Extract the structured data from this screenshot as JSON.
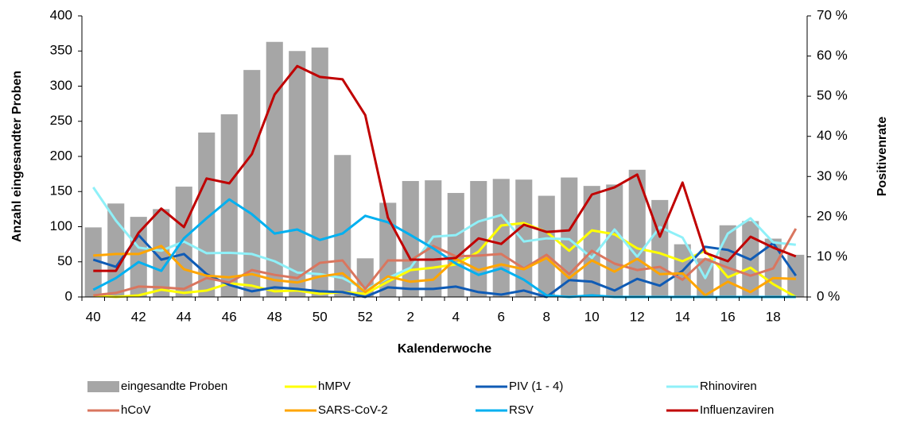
{
  "chart_data": {
    "type": "bar",
    "x_label": "Kalenderwoche",
    "y_label": "Anzahl eingesandter Proben",
    "y2_label": "Positivenrate",
    "categories": [
      "40",
      null,
      "42",
      null,
      "44",
      null,
      "46",
      null,
      "48",
      null,
      "50",
      null,
      "52",
      null,
      "2",
      null,
      "4",
      null,
      "6",
      null,
      "8",
      null,
      "10",
      null,
      "12",
      null,
      "14",
      null,
      "16",
      null,
      "18",
      null
    ],
    "ylim": [
      0,
      400
    ],
    "yticks": [
      0,
      50,
      100,
      150,
      200,
      250,
      300,
      350,
      400
    ],
    "y2lim": [
      0,
      70
    ],
    "y2ticks": [
      {
        "value": 0,
        "label": "0 %"
      },
      {
        "value": 10,
        "label": "10 %"
      },
      {
        "value": 20,
        "label": "20 %"
      },
      {
        "value": 30,
        "label": "30 %"
      },
      {
        "value": 40,
        "label": "40 %"
      },
      {
        "value": 50,
        "label": "50 %"
      },
      {
        "value": 60,
        "label": "60 %"
      },
      {
        "value": 70,
        "label": "70 %"
      }
    ],
    "series": [
      {
        "name": "eingesandte Proben",
        "type": "bar",
        "color": "#a6a6a6",
        "values": [
          99,
          133,
          114,
          125,
          157,
          234,
          260,
          323,
          363,
          350,
          355,
          202,
          55,
          134,
          165,
          166,
          148,
          165,
          168,
          167,
          144,
          170,
          158,
          160,
          181,
          138,
          75,
          55,
          102,
          108,
          83,
          60
        ]
      },
      {
        "name": "hMPV",
        "type": "line",
        "axis": "y2",
        "color": "#ffff00",
        "values": [
          0.4,
          0,
          0.4,
          1.8,
          1,
          1.6,
          3.4,
          2.8,
          1.4,
          1.6,
          0.8,
          1.2,
          0.8,
          3.8,
          6.7,
          7.3,
          8.1,
          11.3,
          17.8,
          18.4,
          16.2,
          11.5,
          16.6,
          15.6,
          12.1,
          10.9,
          8.9,
          11.5,
          4.9,
          7.3,
          3.2,
          0
        ]
      },
      {
        "name": "PIV (1 - 4)",
        "type": "line",
        "axis": "y2",
        "color": "#0f5bb5",
        "values": [
          9.3,
          7.5,
          15.4,
          9.3,
          10.7,
          5.7,
          3,
          1.4,
          2.4,
          2,
          1.4,
          1.2,
          0,
          2.4,
          2,
          2,
          2.6,
          1.2,
          0.6,
          1.6,
          0,
          4.2,
          3.8,
          1.6,
          4.5,
          2.8,
          6.5,
          12.5,
          11.7,
          9.3,
          13.4,
          5.3
        ]
      },
      {
        "name": "Rhinoviren",
        "type": "line",
        "axis": "y2",
        "color": "#8ff0f8",
        "values": [
          27.3,
          19,
          12.3,
          11.5,
          13.8,
          10.9,
          11,
          10.7,
          8.9,
          6.1,
          5.7,
          4.7,
          1.8,
          4.7,
          7.3,
          15,
          15.4,
          18.8,
          20.4,
          13.8,
          14.6,
          14.4,
          9.7,
          16.8,
          10,
          17.4,
          14.8,
          4.7,
          15.8,
          19.6,
          13.6,
          13
        ]
      },
      {
        "name": "hCoV",
        "type": "line",
        "axis": "y2",
        "color": "#d9765f",
        "values": [
          0.4,
          1,
          2.6,
          2.4,
          2,
          4.7,
          3.6,
          6.7,
          5.5,
          4.7,
          8.5,
          9.1,
          2,
          9.1,
          9.1,
          12.7,
          10.1,
          10.3,
          10.7,
          7.1,
          10.5,
          5.7,
          11.5,
          8.3,
          6.7,
          7.5,
          4.3,
          9.5,
          7.3,
          5.3,
          7.1,
          17
        ]
      },
      {
        "name": "SARS-CoV-2",
        "type": "line",
        "axis": "y2",
        "color": "#ffa500",
        "values": [
          10.3,
          10.7,
          10.7,
          12.7,
          6.9,
          5.3,
          4.9,
          5.7,
          4.2,
          3.6,
          5.1,
          5.9,
          1.2,
          5.1,
          3.8,
          4.3,
          9.5,
          6.7,
          8.1,
          6.9,
          9.7,
          4.7,
          9.1,
          6.3,
          9.5,
          5.7,
          5.9,
          0.4,
          3.8,
          1.2,
          4.7,
          4.5
        ]
      },
      {
        "name": "RSV",
        "type": "line",
        "axis": "y2",
        "color": "#00b0f0",
        "values": [
          1.8,
          4.7,
          8.7,
          6.5,
          14.6,
          19.6,
          24.3,
          20.6,
          15.8,
          16.8,
          14.2,
          15.8,
          20.2,
          18.6,
          15.4,
          12.1,
          8.3,
          5.5,
          7.1,
          4.3,
          0.4,
          0,
          0.4,
          0,
          0,
          0,
          0,
          0,
          0,
          0,
          0,
          0
        ]
      },
      {
        "name": "Influenzaviren",
        "type": "line",
        "axis": "y2",
        "color": "#c00000",
        "values": [
          6.5,
          6.5,
          16,
          22,
          17.4,
          29.5,
          28.3,
          35.6,
          50.4,
          57.5,
          54.8,
          54.2,
          45.3,
          19.8,
          9.3,
          9.3,
          9.7,
          14.6,
          13.2,
          18,
          16.2,
          16.6,
          25.5,
          27.3,
          30.5,
          15,
          28.5,
          11,
          8.9,
          15,
          12.3,
          10.1
        ]
      }
    ]
  }
}
